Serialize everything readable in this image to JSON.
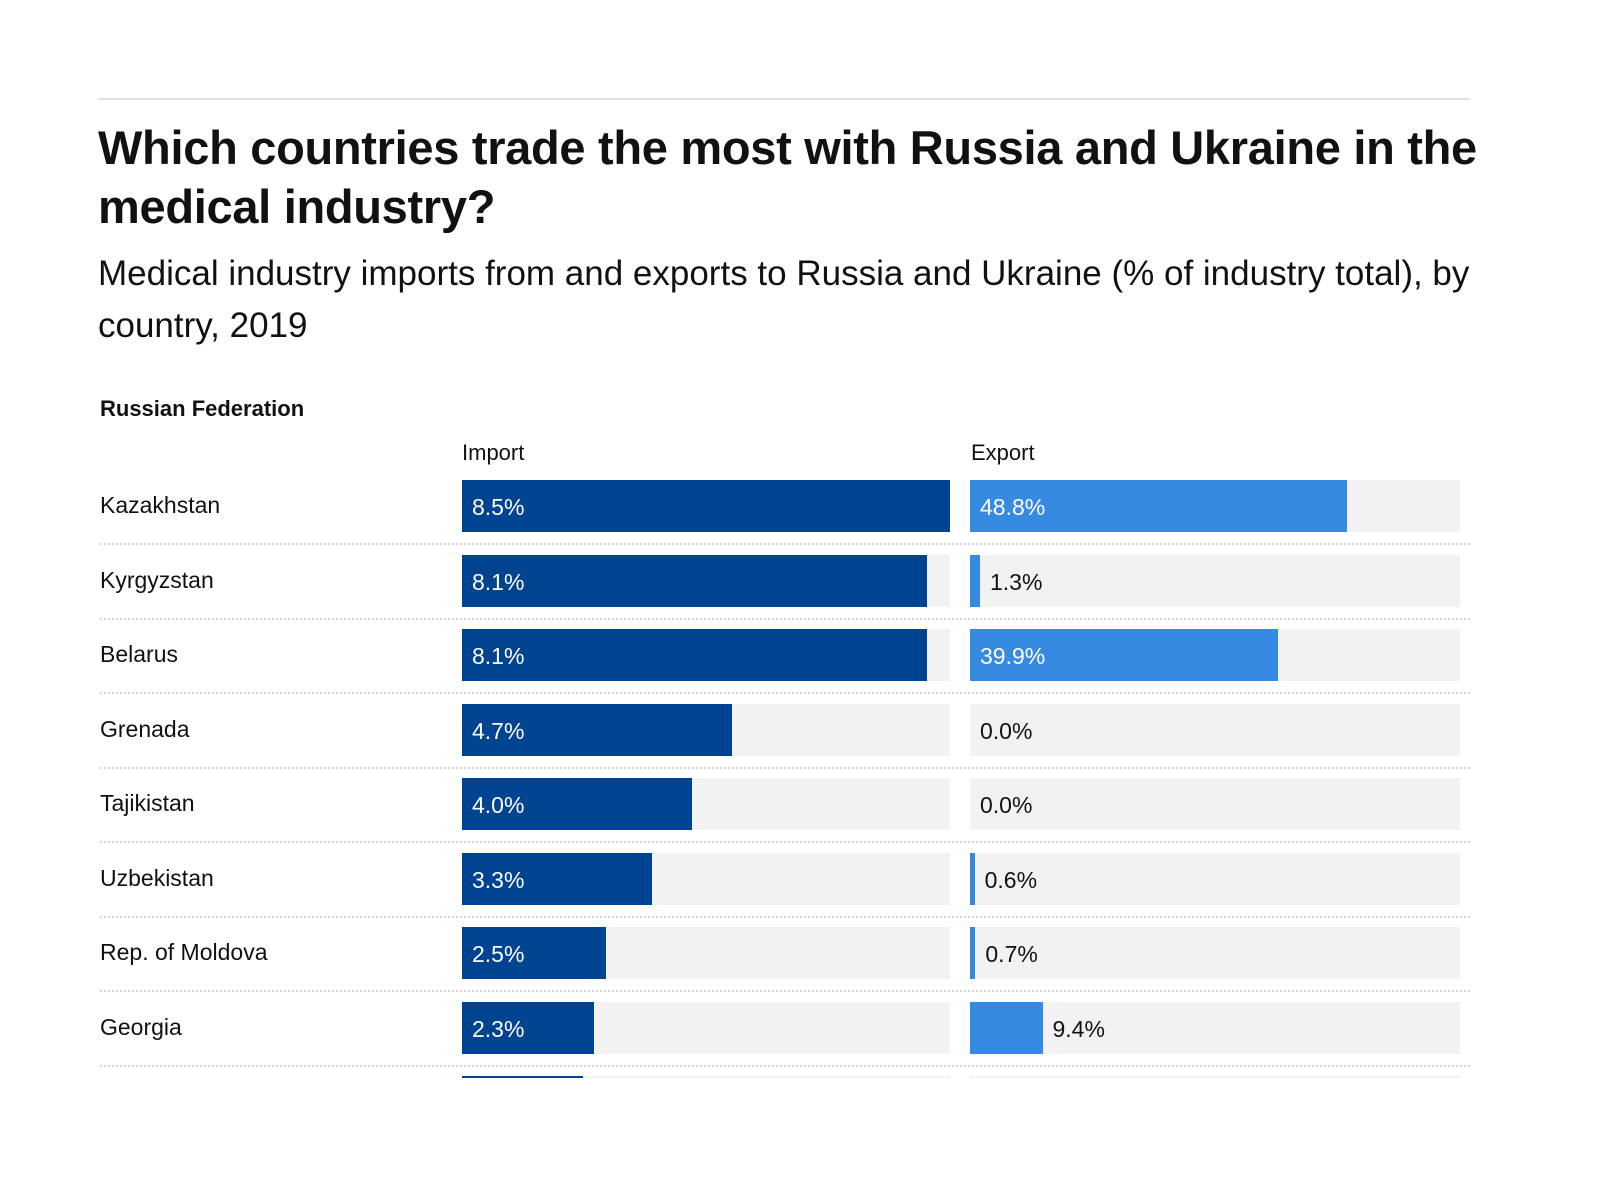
{
  "header": {
    "title": "Which countries trade the most with Russia and Ukraine in the medical industry?",
    "subtitle": "Medical industry imports from and exports to Russia and Ukraine (% of industry total), by country, 2019"
  },
  "section": {
    "label": "Russian Federation"
  },
  "colors": {
    "import": "#004491",
    "export": "#368ae2",
    "track": "#f2f2f2"
  },
  "chart_data": {
    "type": "bar",
    "title": "Which countries trade the most with Russia and Ukraine in the medical industry?",
    "subtitle": "Medical industry imports from and exports to Russia and Ukraine (% of industry total), by country, 2019",
    "facet": "Russian Federation",
    "orientation": "horizontal",
    "unit": "%",
    "categories": [
      "Kazakhstan",
      "Kyrgyzstan",
      "Belarus",
      "Grenada",
      "Tajikistan",
      "Uzbekistan",
      "Rep. of Moldova",
      "Georgia"
    ],
    "series": [
      {
        "name": "Import",
        "values": [
          8.5,
          8.1,
          8.1,
          4.7,
          4.0,
          3.3,
          2.5,
          2.3
        ],
        "labels": [
          "8.5%",
          "8.1%",
          "8.1%",
          "4.7%",
          "4.0%",
          "3.3%",
          "2.5%",
          "2.3%"
        ],
        "xlim": [
          0,
          8.5
        ]
      },
      {
        "name": "Export",
        "values": [
          48.8,
          1.3,
          39.9,
          0.0,
          0.0,
          0.6,
          0.7,
          9.4
        ],
        "labels": [
          "48.8%",
          "1.3%",
          "39.9%",
          "0.0%",
          "0.0%",
          "0.6%",
          "0.7%",
          "9.4%"
        ],
        "xlim": [
          0,
          63.5
        ]
      }
    ],
    "partial_row": {
      "import_value": 2.1
    }
  }
}
